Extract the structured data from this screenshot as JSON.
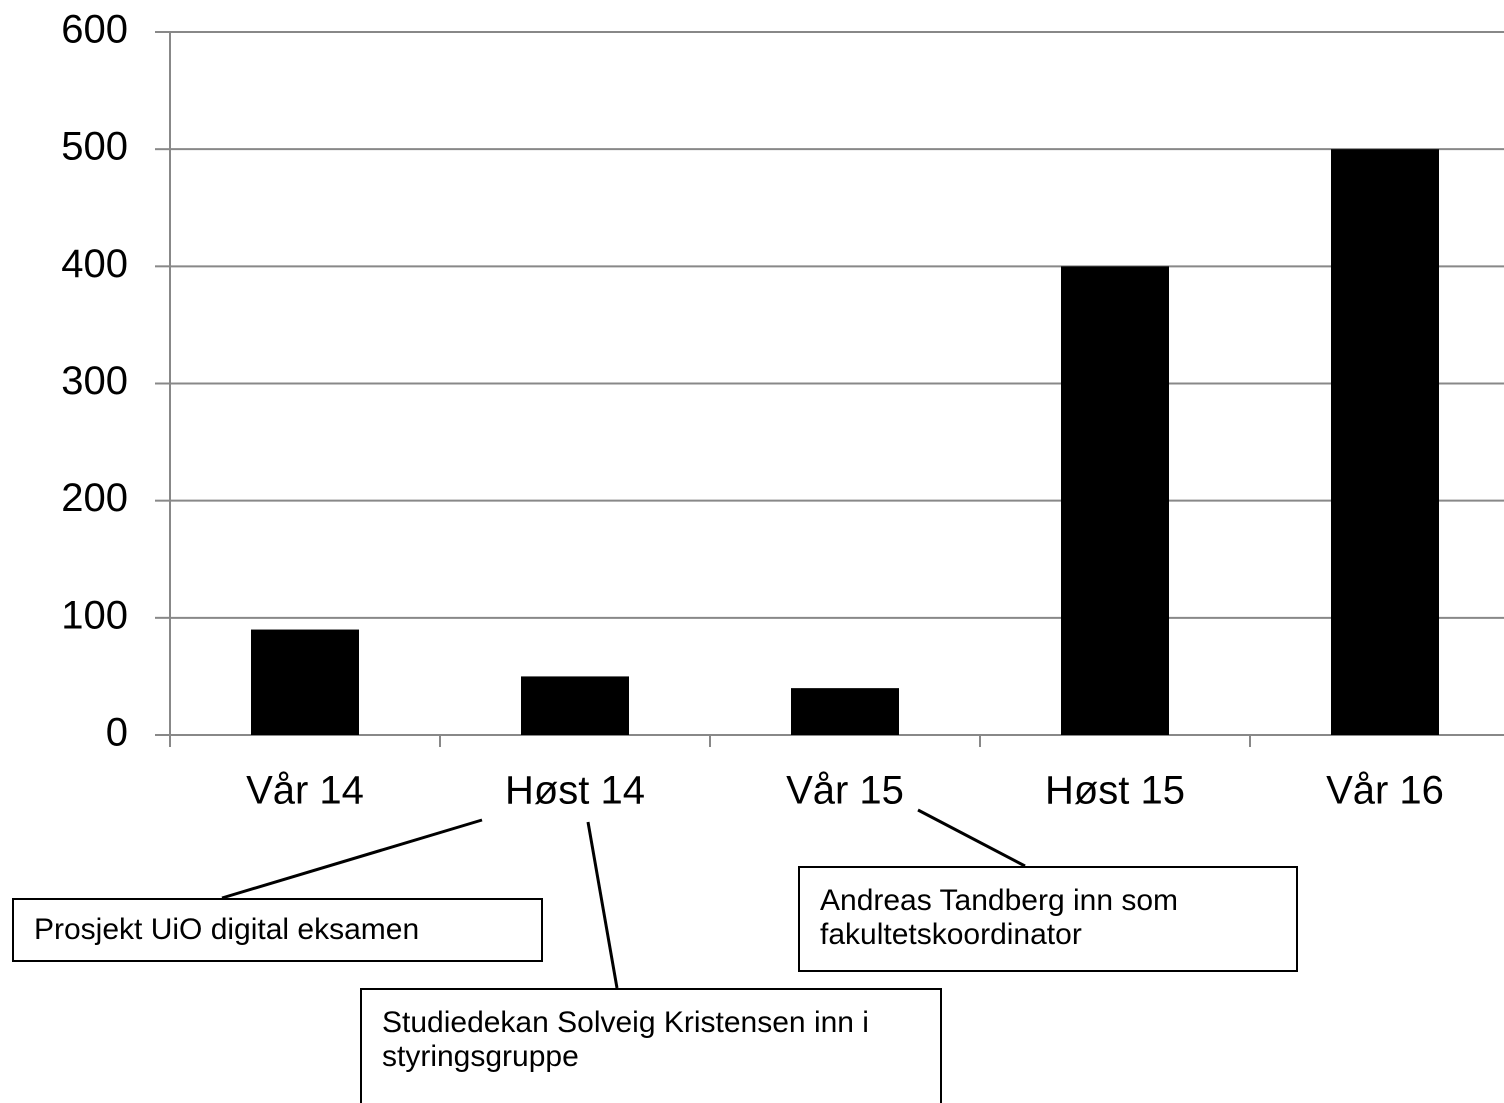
{
  "chart_data": {
    "type": "bar",
    "categories": [
      "Vår 14",
      "Høst 14",
      "Vår 15",
      "Høst 15",
      "Vår 16"
    ],
    "values": [
      90,
      50,
      40,
      400,
      500
    ],
    "color": "#000000",
    "ylim": [
      0,
      600
    ],
    "yticks": [
      0,
      100,
      200,
      300,
      400,
      500,
      600
    ],
    "grid": true,
    "annotations": [
      {
        "text": "Prosjekt UiO digital eksamen"
      },
      {
        "text": "Studiedekan Solveig Kristensen inn i styringsgruppe"
      },
      {
        "text": "Andreas Tandberg inn som fakultetskoordinator"
      }
    ]
  }
}
